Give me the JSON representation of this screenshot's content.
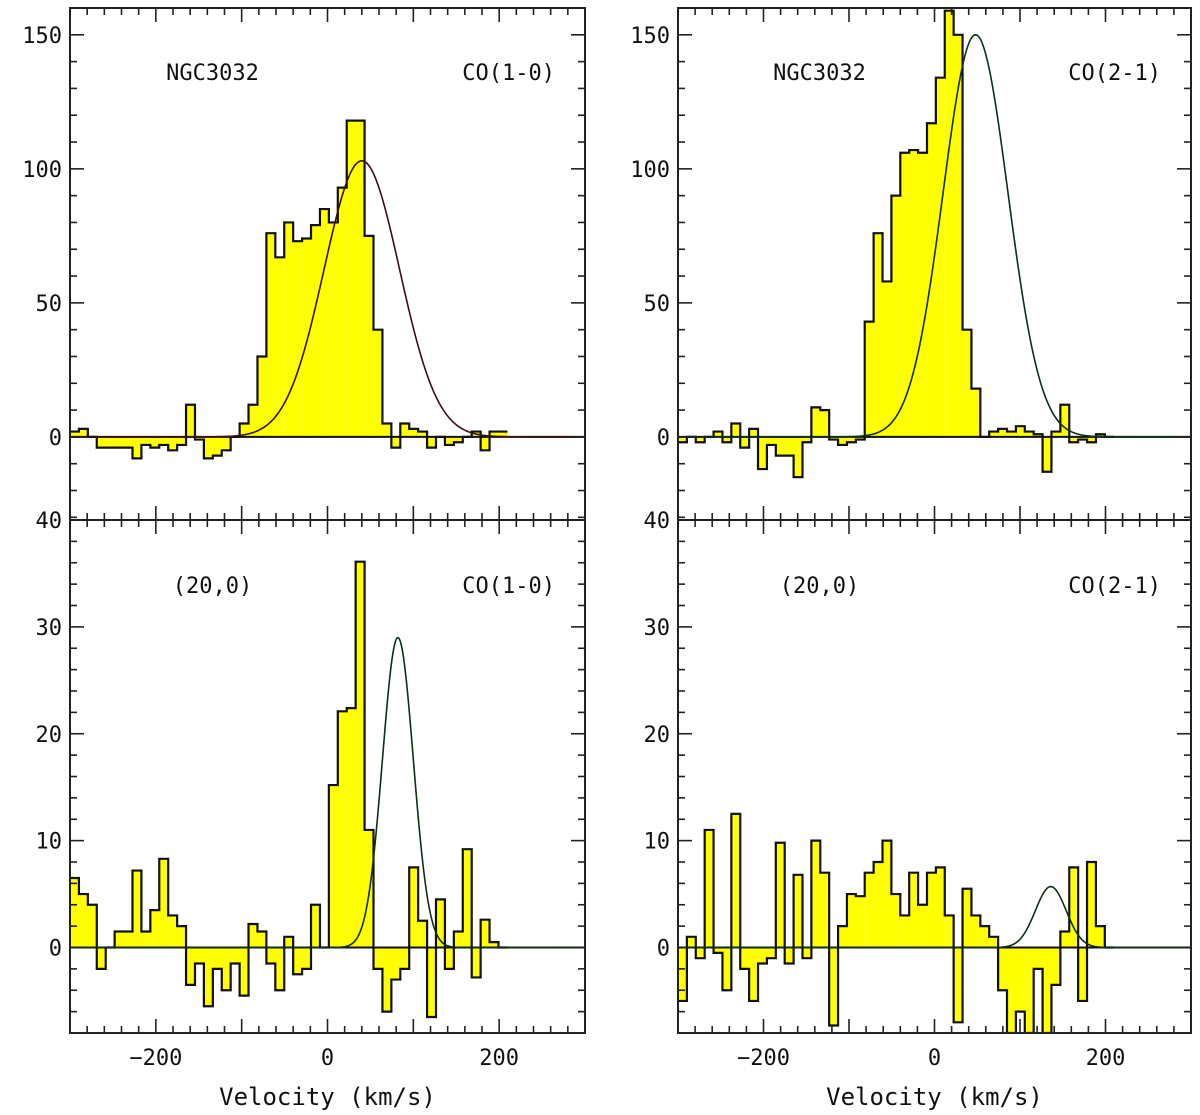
{
  "colors": {
    "fill": "#ffff00",
    "outline": "#111111",
    "fit_top_left": "#3a1010",
    "fit": "#0e3014",
    "frame": "#222222"
  },
  "chart_data": [
    {
      "id": "top_left",
      "type": "step-histogram",
      "panel": "top-left",
      "source_label": "NGC3032",
      "line_label": "CO(1-0)",
      "xlim": [
        -300,
        300
      ],
      "ylim": [
        -31,
        160
      ],
      "yticks": [
        0,
        50,
        100,
        150
      ],
      "ytick_labels": [
        "0",
        "50",
        "100",
        "150"
      ],
      "xticks": [
        -200,
        0,
        200
      ],
      "xtick_labels": [],
      "xlabel": "",
      "bin_width": 10.4,
      "bin_start": -300,
      "values": [
        2,
        3,
        0,
        -4,
        -4,
        -4,
        -4,
        -8,
        -3,
        -4,
        -3,
        -5,
        -3,
        12,
        -1,
        -8,
        -7,
        -5,
        0,
        5,
        12,
        30,
        76,
        67,
        80,
        73,
        74,
        79,
        85,
        80,
        93,
        118,
        118,
        75,
        40,
        5,
        -4,
        5,
        3,
        2,
        -4,
        0,
        -3,
        -2,
        0,
        2,
        -5,
        2,
        2
      ],
      "fit": {
        "amplitude": 103,
        "center": 40,
        "sigma": 44,
        "color_key": "fit_top_left"
      }
    },
    {
      "id": "top_right",
      "type": "step-histogram",
      "panel": "top-right",
      "source_label": "NGC3032",
      "line_label": "CO(2-1)",
      "xlim": [
        -300,
        300
      ],
      "ylim": [
        -31,
        160
      ],
      "yticks": [
        0,
        50,
        100,
        150
      ],
      "ytick_labels": [
        "0",
        "50",
        "100",
        "150"
      ],
      "xticks": [
        -200,
        0,
        200
      ],
      "xtick_labels": [],
      "xlabel": "",
      "bin_width": 10.4,
      "bin_start": -300,
      "values": [
        -2,
        0,
        -2,
        0,
        2,
        -2,
        5,
        -4,
        3,
        -12,
        -3,
        -7,
        -7,
        -15,
        -2,
        11,
        10,
        -1,
        -3,
        -2,
        -1,
        43,
        76,
        58,
        90,
        106,
        107,
        106,
        117,
        134,
        159,
        150,
        40,
        18,
        0,
        2,
        3,
        2,
        4,
        2,
        1,
        -13,
        2,
        12,
        -2,
        -1,
        -2,
        1,
        0
      ],
      "fit": {
        "amplitude": 150,
        "center": 48,
        "sigma": 38,
        "color_key": "fit"
      }
    },
    {
      "id": "bottom_left",
      "type": "step-histogram",
      "panel": "bottom-left",
      "source_label": "(20,0)",
      "line_label": "CO(1-0)",
      "xlim": [
        -300,
        300
      ],
      "ylim": [
        -8,
        40
      ],
      "yticks": [
        0,
        10,
        20,
        30,
        40
      ],
      "ytick_labels": [
        "0",
        "10",
        "20",
        "30",
        "40"
      ],
      "xticks": [
        -200,
        0,
        200
      ],
      "xtick_labels": [
        "−200",
        "0",
        "200"
      ],
      "xlabel": "Velocity (km/s)",
      "bin_width": 10.4,
      "bin_start": -300,
      "values": [
        6.5,
        5,
        4,
        -2,
        0,
        1.5,
        1.5,
        7.2,
        1.5,
        3.5,
        8.3,
        3,
        2,
        -3.5,
        -1.5,
        -5.5,
        -2,
        -4,
        -1.5,
        -4.5,
        2.2,
        1.5,
        -1.5,
        -4,
        1,
        -2.5,
        -2,
        4,
        0,
        15.2,
        22.1,
        22.4,
        36.1,
        11,
        -2,
        -6,
        -3,
        -2,
        7.5,
        2.5,
        -6.5,
        4.5,
        -2,
        1.5,
        9.2,
        -2.8,
        2.6,
        0.5,
        0
      ],
      "fit": {
        "amplitude": 29,
        "center": 82,
        "sigma": 18,
        "color_key": "fit"
      }
    },
    {
      "id": "bottom_right",
      "type": "step-histogram",
      "panel": "bottom-right",
      "source_label": "(20,0)",
      "line_label": "CO(2-1)",
      "xlim": [
        -300,
        300
      ],
      "ylim": [
        -8,
        40
      ],
      "yticks": [
        0,
        10,
        20,
        30,
        40
      ],
      "ytick_labels": [
        "0",
        "10",
        "20",
        "30",
        "40"
      ],
      "xticks": [
        -200,
        0,
        200
      ],
      "xtick_labels": [
        "−200",
        "0",
        "200"
      ],
      "xlabel": "Velocity (km/s)",
      "bin_width": 10.4,
      "bin_start": -300,
      "values": [
        -5,
        1,
        -1,
        11,
        -0.5,
        -4,
        12.5,
        -2,
        -5,
        -1.5,
        -1,
        9.8,
        -1.5,
        6.8,
        -1,
        10,
        7,
        -7.3,
        2,
        5,
        4.8,
        7,
        8,
        10,
        5,
        3,
        7,
        4,
        7,
        7.5,
        3,
        -7,
        5.5,
        3,
        2,
        1,
        -4,
        -8,
        -6,
        -8,
        -2,
        -8,
        -3.5,
        1.5,
        7.5,
        -5,
        8,
        2,
        0
      ],
      "fit": {
        "amplitude": 5.7,
        "center": 136,
        "sigma": 18,
        "color_key": "fit"
      }
    }
  ]
}
